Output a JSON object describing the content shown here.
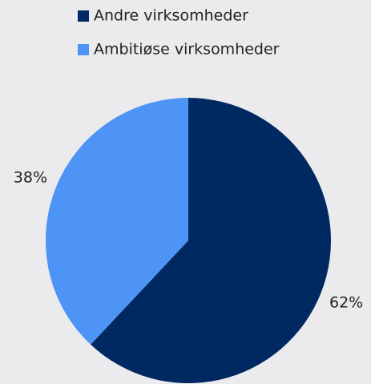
{
  "chart_data": {
    "type": "pie",
    "series": [
      {
        "name": "Andre virksomheder",
        "color": "#002861",
        "values": [
          62
        ],
        "value_labels": [
          "62%"
        ]
      },
      {
        "name": "Ambitiøse virksomheder",
        "color": "#4d94f6",
        "values": [
          38
        ],
        "value_labels": [
          "38%"
        ]
      }
    ],
    "legend": "top"
  }
}
